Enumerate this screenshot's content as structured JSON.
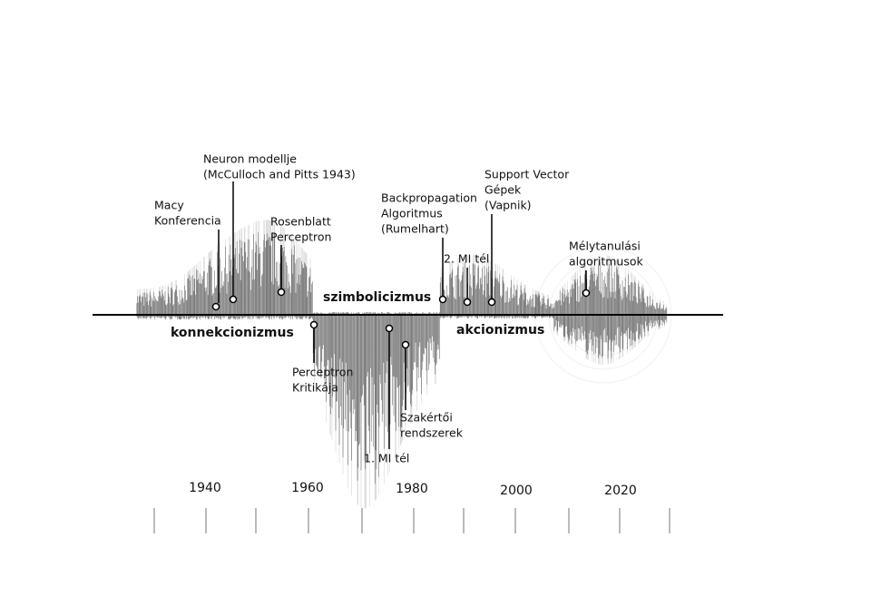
{
  "paradigms": [
    "konnekcionizmus",
    "szimbolicizmus",
    "akcionizmus"
  ],
  "events": [
    {
      "label": [
        "Macy",
        "Konferencia"
      ]
    },
    {
      "label": [
        "Neuron modellje",
        "(McCulloch and Pitts 1943)"
      ]
    },
    {
      "label": [
        "Rosenblatt",
        "Perceptron"
      ]
    },
    {
      "label": [
        "Perceptron",
        "Kritikája"
      ]
    },
    {
      "label": [
        "1. MI tél"
      ]
    },
    {
      "label": [
        "Szakértői",
        "rendszerek"
      ]
    },
    {
      "label": [
        "Backpropagation",
        "Algoritmus",
        "(Rumelhart)"
      ]
    },
    {
      "label": [
        "2. MI tél"
      ]
    },
    {
      "label": [
        "Support Vector",
        "Gépek",
        "(Vapnik)"
      ]
    },
    {
      "label": [
        "Mélytanulási",
        "algoritmusok"
      ]
    }
  ],
  "timeline": {
    "years": [
      "1940",
      "1960",
      "1980",
      "2000",
      "2020"
    ]
  }
}
